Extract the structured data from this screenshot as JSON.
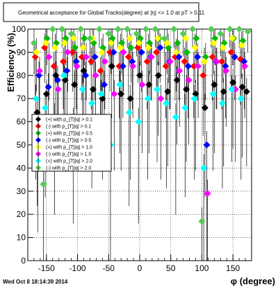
{
  "title": "Geometrical acceptance for Global Tracks(degree) at |η| <= 1.0 at pT > 0.11",
  "footer": "Wed Oct  8 18:14:39 2014",
  "chart_data": {
    "type": "scatter",
    "xlabel": "φ (degree)",
    "ylabel": "Efficiency (%)",
    "xlim": [
      -180,
      180
    ],
    "ylim": [
      0,
      100
    ],
    "x_ticks": [
      -150,
      -100,
      -50,
      0,
      50,
      100,
      150
    ],
    "y_ticks": [
      0,
      10,
      20,
      30,
      40,
      50,
      60,
      70,
      80,
      90,
      100
    ],
    "grid": true,
    "legend_position": "left-middle",
    "series": [
      {
        "name": "(+) with p_{T}|q| > 0.1",
        "color": "#000000",
        "marker": "diamond",
        "x": [
          -165,
          -150,
          -135,
          -120,
          -105,
          -90,
          -75,
          -60,
          -45,
          -30,
          -15,
          0,
          15,
          30,
          45,
          60,
          75,
          90,
          105,
          120,
          135,
          150,
          165,
          172
        ],
        "y": [
          64,
          72,
          80,
          78,
          76,
          82,
          74,
          70,
          84,
          72,
          70,
          80,
          76,
          80,
          73,
          78,
          74,
          72,
          66,
          76,
          73,
          77,
          75,
          73
        ]
      },
      {
        "name": "(-) with p_{T}|q| > 0.1",
        "color": "#ff0000",
        "marker": "diamond",
        "x": [
          -168,
          -153,
          -138,
          -123,
          -108,
          -93,
          -78,
          -63,
          -48,
          -33,
          -18,
          -3,
          12,
          27,
          42,
          57,
          72,
          87,
          102,
          117,
          132,
          147,
          162
        ],
        "y": [
          88,
          92,
          84,
          86,
          90,
          88,
          86,
          82,
          90,
          84,
          88,
          92,
          86,
          90,
          84,
          88,
          86,
          84,
          80,
          88,
          86,
          90,
          87
        ]
      },
      {
        "name": "(+) with p_{T}|q| > 0.5",
        "color": "#00bb00",
        "marker": "diamond",
        "x": [
          -164,
          -149,
          -134,
          -119,
          -104,
          -89,
          -74,
          -59,
          -44,
          -29,
          -14,
          1,
          16,
          31,
          46,
          61,
          76,
          91,
          106,
          121,
          136,
          151,
          166
        ],
        "y": [
          58,
          96,
          94,
          96,
          92,
          96,
          94,
          92,
          96,
          94,
          92,
          96,
          94,
          96,
          92,
          94,
          90,
          96,
          88,
          96,
          94,
          96,
          95
        ]
      },
      {
        "name": "(-) with p_{T}|q| > 0.5",
        "color": "#0000ff",
        "marker": "diamond",
        "x": [
          -162,
          -147,
          -132,
          -117,
          -102,
          -87,
          -72,
          -57,
          -42,
          -27,
          -12,
          3,
          18,
          33,
          48,
          63,
          78,
          93,
          108,
          123,
          138,
          153,
          168
        ],
        "y": [
          80,
          75,
          78,
          82,
          86,
          80,
          88,
          76,
          90,
          84,
          86,
          90,
          88,
          92,
          86,
          88,
          84,
          88,
          50,
          86,
          84,
          88,
          86
        ]
      },
      {
        "name": "(+) with p_{T}|q| > 1.0",
        "color": "#ffff00",
        "marker": "diamond",
        "x": [
          -166,
          -151,
          -136,
          -121,
          -106,
          -91,
          -76,
          -61,
          -46,
          -31,
          -16,
          -1,
          14,
          29,
          44,
          59,
          74,
          89,
          104,
          119,
          134,
          149,
          164
        ],
        "y": [
          90,
          94,
          92,
          94,
          96,
          92,
          96,
          90,
          94,
          92,
          96,
          94,
          92,
          96,
          94,
          90,
          96,
          92,
          86,
          94,
          92,
          96,
          93
        ]
      },
      {
        "name": "(-) with p_{T}|q| > 1.0",
        "color": "#ff00ff",
        "marker": "diamond",
        "x": [
          -161,
          -146,
          -131,
          -116,
          -101,
          -86,
          -71,
          -56,
          -41,
          -26,
          -11,
          4,
          19,
          34,
          49,
          64,
          79,
          94,
          109,
          124,
          139,
          154,
          169
        ],
        "y": [
          82,
          88,
          74,
          90,
          84,
          88,
          80,
          86,
          72,
          90,
          84,
          76,
          88,
          70,
          86,
          82,
          78,
          84,
          29,
          86,
          82,
          74,
          84
        ]
      },
      {
        "name": "(+) with p_{T}|q| > 2.0",
        "color": "#00ffff",
        "marker": "diamond",
        "x": [
          -167,
          -152,
          -137,
          -122,
          -107,
          -92,
          -77,
          -62,
          -47,
          -32,
          -17,
          -2,
          13,
          28,
          43,
          58,
          73,
          88,
          103,
          118,
          133,
          148,
          163
        ],
        "y": [
          70,
          66,
          62,
          80,
          60,
          74,
          68,
          72,
          50,
          76,
          64,
          60,
          70,
          74,
          68,
          62,
          66,
          70,
          40,
          72,
          68,
          74,
          70
        ]
      },
      {
        "name": "(-) with p_{T}|q| > 2.0",
        "color": "#55cc55",
        "marker": "diamond",
        "x": [
          -170,
          -155,
          -140,
          -125,
          -110,
          -95,
          -80,
          -65,
          -50,
          -35,
          -20,
          -5,
          10,
          25,
          40,
          55,
          70,
          85,
          100,
          115,
          130,
          145,
          160,
          174
        ],
        "y": [
          94,
          33,
          100,
          100,
          98,
          100,
          96,
          100,
          98,
          100,
          100,
          98,
          100,
          100,
          96,
          100,
          98,
          100,
          17,
          100,
          98,
          100,
          100,
          99
        ]
      }
    ]
  }
}
